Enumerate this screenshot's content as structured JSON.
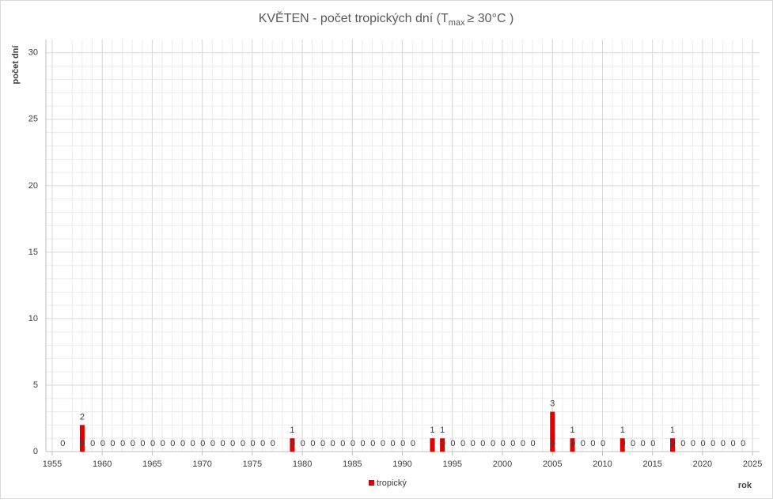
{
  "chart_data": {
    "type": "bar",
    "title": "KVĚTEN - počet tropických dní (T",
    "title_subscript": "max",
    "title_suffix": "≥ 30°C )",
    "x_label": "rok",
    "y_label": "počet dní",
    "x": [
      1957,
      1958,
      1959,
      1960,
      1961,
      1962,
      1963,
      1964,
      1965,
      1966,
      1967,
      1968,
      1969,
      1970,
      1971,
      1972,
      1973,
      1974,
      1975,
      1976,
      1977,
      1978,
      1979,
      1980,
      1981,
      1982,
      1983,
      1984,
      1985,
      1986,
      1987,
      1988,
      1989,
      1990,
      1991,
      1992,
      1993,
      1994,
      1995,
      1996,
      1997,
      1998,
      1999,
      2000,
      2001,
      2002,
      2003,
      2004,
      2005,
      2006,
      2007,
      2008,
      2009,
      2010,
      2011,
      2012,
      2013,
      2014,
      2015,
      2016,
      2017,
      2018,
      2019,
      2020,
      2021,
      2022,
      2023,
      2024,
      2025
    ],
    "series": [
      {
        "name": "tropický",
        "color": "#e00000",
        "values": [
          0,
          2,
          0,
          0,
          0,
          0,
          0,
          0,
          0,
          0,
          0,
          0,
          0,
          0,
          0,
          0,
          0,
          0,
          0,
          0,
          0,
          0,
          1,
          0,
          0,
          0,
          0,
          0,
          0,
          0,
          0,
          0,
          0,
          0,
          0,
          0,
          1,
          1,
          0,
          0,
          0,
          0,
          0,
          0,
          0,
          0,
          0,
          0,
          3,
          0,
          1,
          0,
          0,
          0,
          0,
          1,
          0,
          0,
          0,
          0,
          1,
          0,
          0,
          0,
          0,
          0,
          0,
          0,
          0
        ]
      }
    ],
    "xlim": [
      1954.37,
      2025.7
    ],
    "xticks": [
      1955,
      1960,
      1965,
      1970,
      1975,
      1980,
      1985,
      1990,
      1995,
      2000,
      2005,
      2010,
      2015,
      2020,
      2025
    ],
    "ylim": [
      0,
      31
    ],
    "yticks": [
      0,
      5,
      10,
      15,
      20,
      25,
      30
    ],
    "grid": true,
    "minor_grid": true,
    "legend": "bottom"
  }
}
